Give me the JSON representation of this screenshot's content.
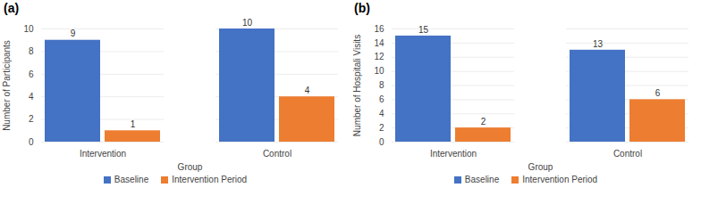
{
  "chart_data": [
    {
      "type": "bar",
      "title": "(a)",
      "xlabel": "Group",
      "ylabel": "Number of Participants",
      "categories": [
        "Intervention",
        "Control"
      ],
      "series": [
        {
          "name": "Baseline",
          "color": "#4472c4",
          "values": [
            9,
            10
          ]
        },
        {
          "name": "Intervention Period",
          "color": "#ed7d31",
          "values": [
            1,
            4
          ]
        }
      ],
      "ylim": [
        0,
        10
      ],
      "yticks": [
        0,
        2,
        4,
        6,
        8,
        10
      ],
      "grid": true,
      "data_labels": true,
      "legend": "bottom"
    },
    {
      "type": "bar",
      "title": "(b)",
      "xlabel": "Group",
      "ylabel": "Number of Hospitali Visits",
      "categories": [
        "Intervention",
        "Control"
      ],
      "series": [
        {
          "name": "Baseline",
          "color": "#4472c4",
          "values": [
            15,
            13
          ]
        },
        {
          "name": "Intervention Period",
          "color": "#ed7d31",
          "values": [
            2,
            6
          ]
        }
      ],
      "ylim": [
        0,
        16
      ],
      "yticks": [
        0,
        2,
        4,
        6,
        8,
        10,
        12,
        14,
        16
      ],
      "grid": true,
      "data_labels": true,
      "legend": "bottom"
    }
  ]
}
